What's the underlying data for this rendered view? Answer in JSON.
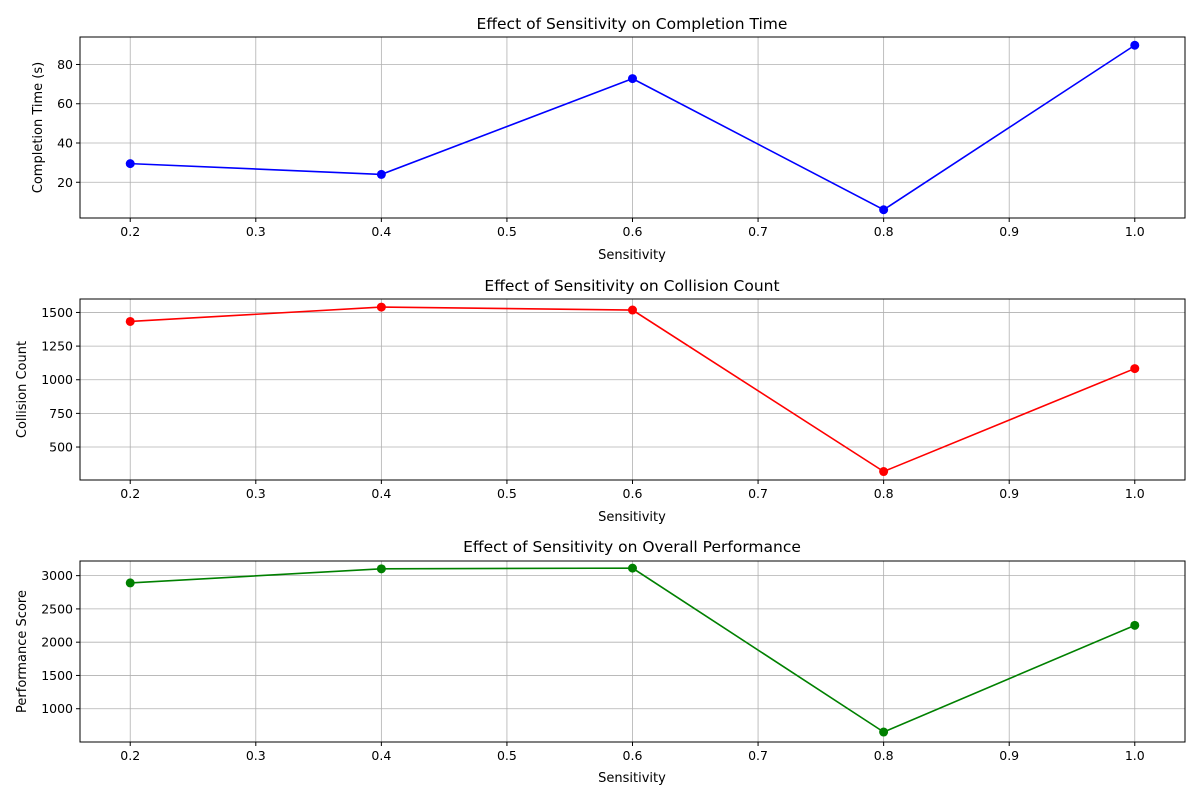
{
  "chart_data": [
    {
      "type": "line",
      "title": "Effect of Sensitivity on Completion Time",
      "xlabel": "Sensitivity",
      "ylabel": "Completion Time (s)",
      "x": [
        0.2,
        0.4,
        0.6,
        0.8,
        1.0
      ],
      "series": [
        {
          "values": [
            29.5,
            24.0,
            72.8,
            6.0,
            89.8
          ],
          "color": "#0000ff"
        }
      ],
      "xlim": [
        0.16,
        1.04
      ],
      "ylim": [
        1.8,
        94.0
      ],
      "xticks": [
        0.2,
        0.3,
        0.4,
        0.5,
        0.6,
        0.7,
        0.8,
        0.9,
        1.0
      ],
      "xtick_labels": [
        "0.2",
        "0.3",
        "0.4",
        "0.5",
        "0.6",
        "0.7",
        "0.8",
        "0.9",
        "1.0"
      ],
      "yticks": [
        20,
        40,
        60,
        80
      ],
      "ytick_labels": [
        "20",
        "40",
        "60",
        "80"
      ],
      "grid": true
    },
    {
      "type": "line",
      "title": "Effect of Sensitivity on Collision Count",
      "xlabel": "Sensitivity",
      "ylabel": "Collision Count",
      "x": [
        0.2,
        0.4,
        0.6,
        0.8,
        1.0
      ],
      "series": [
        {
          "values": [
            1433,
            1540,
            1518,
            318,
            1083
          ],
          "color": "#ff0000"
        }
      ],
      "xlim": [
        0.16,
        1.04
      ],
      "ylim": [
        255,
        1600
      ],
      "xticks": [
        0.2,
        0.3,
        0.4,
        0.5,
        0.6,
        0.7,
        0.8,
        0.9,
        1.0
      ],
      "xtick_labels": [
        "0.2",
        "0.3",
        "0.4",
        "0.5",
        "0.6",
        "0.7",
        "0.8",
        "0.9",
        "1.0"
      ],
      "yticks": [
        500,
        750,
        1000,
        1250,
        1500
      ],
      "ytick_labels": [
        "500",
        "750",
        "1000",
        "1250",
        "1500"
      ],
      "grid": true
    },
    {
      "type": "line",
      "title": "Effect of Sensitivity on Overall Performance",
      "xlabel": "Sensitivity",
      "ylabel": "Performance Score",
      "x": [
        0.2,
        0.4,
        0.6,
        0.8,
        1.0
      ],
      "series": [
        {
          "values": [
            2891,
            3102,
            3113,
            650,
            2253
          ],
          "color": "#008000"
        }
      ],
      "xlim": [
        0.16,
        1.04
      ],
      "ylim": [
        500,
        3220
      ],
      "xticks": [
        0.2,
        0.3,
        0.4,
        0.5,
        0.6,
        0.7,
        0.8,
        0.9,
        1.0
      ],
      "xtick_labels": [
        "0.2",
        "0.3",
        "0.4",
        "0.5",
        "0.6",
        "0.7",
        "0.8",
        "0.9",
        "1.0"
      ],
      "yticks": [
        1000,
        1500,
        2000,
        2500,
        3000
      ],
      "ytick_labels": [
        "1000",
        "1500",
        "2000",
        "2500",
        "3000"
      ],
      "grid": true
    }
  ]
}
